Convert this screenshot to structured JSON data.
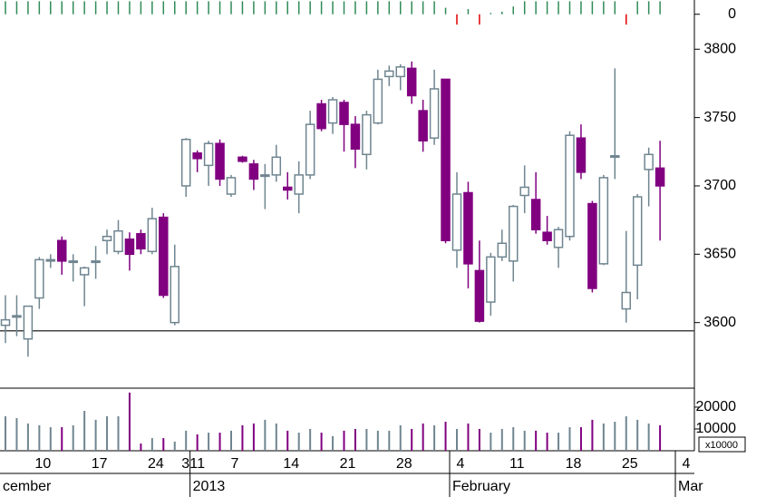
{
  "chart_data": [
    {
      "type": "candlestick",
      "categories": [
        null,
        null,
        null,
        "10",
        null,
        null,
        null,
        null,
        "17",
        null,
        null,
        null,
        null,
        "24",
        null,
        null,
        "31",
        "1",
        null,
        null,
        "7",
        null,
        null,
        null,
        null,
        "14",
        null,
        null,
        null,
        null,
        "21",
        null,
        null,
        null,
        null,
        "28",
        null,
        null,
        null,
        null,
        "4",
        null,
        null,
        null,
        null,
        "11",
        null,
        null,
        null,
        null,
        "18",
        null,
        null,
        null,
        null,
        "25",
        null,
        null,
        null,
        null,
        "4"
      ],
      "period_labels": [
        "cember",
        null,
        null,
        null,
        null,
        null,
        null,
        null,
        null,
        null,
        null,
        null,
        null,
        null,
        null,
        null,
        null,
        "2013",
        null,
        null,
        null,
        null,
        null,
        null,
        null,
        null,
        null,
        null,
        null,
        null,
        null,
        null,
        null,
        null,
        null,
        null,
        null,
        null,
        null,
        null,
        "February",
        null,
        null,
        null,
        null,
        null,
        null,
        null,
        null,
        null,
        null,
        null,
        null,
        null,
        null,
        null,
        null,
        null,
        null,
        null,
        "Mar"
      ],
      "open": [
        3598,
        3604,
        3588,
        3618,
        3645,
        3660,
        3645,
        3635,
        3645,
        3660,
        3652,
        3661,
        3665,
        3652,
        3677,
        3600,
        3700,
        3724,
        3715,
        3731,
        3694,
        3721,
        3716,
        3708,
        3708,
        3699,
        3694,
        3708,
        3760,
        3746,
        3761,
        3745,
        3723,
        3746,
        3780,
        3780,
        3786,
        3755,
        3735,
        3778,
        3653,
        3695,
        3638,
        3615,
        3648,
        3645,
        3693,
        3690,
        3666,
        3655,
        3663,
        3735,
        3687,
        3643,
        3722,
        3610,
        3642,
        3712,
        3713,
        null,
        null
      ],
      "high": [
        3620,
        3620,
        3612,
        3648,
        3650,
        3663,
        3650,
        3641,
        3656,
        3668,
        3675,
        3666,
        3668,
        3684,
        3680,
        3657,
        3735,
        3726,
        3733,
        3734,
        3708,
        3722,
        3719,
        3716,
        3730,
        3710,
        3718,
        3755,
        3763,
        3765,
        3763,
        3751,
        3755,
        3785,
        3788,
        3789,
        3791,
        3763,
        3785,
        3778,
        3710,
        3703,
        3660,
        3651,
        3668,
        3686,
        3715,
        3710,
        3678,
        3670,
        3740,
        3745,
        3689,
        3708,
        3786,
        3667,
        3694,
        3728,
        3733,
        null,
        null
      ],
      "low": [
        3585,
        3590,
        3575,
        3610,
        3640,
        3635,
        3630,
        3612,
        3632,
        3650,
        3650,
        3638,
        3650,
        3650,
        3618,
        3598,
        3692,
        3710,
        3700,
        3700,
        3692,
        3717,
        3697,
        3683,
        3703,
        3690,
        3680,
        3705,
        3740,
        3738,
        3725,
        3713,
        3712,
        3745,
        3773,
        3770,
        3760,
        3725,
        3730,
        3658,
        3640,
        3625,
        3600,
        3605,
        3645,
        3630,
        3680,
        3665,
        3657,
        3640,
        3660,
        3705,
        3622,
        3642,
        3705,
        3600,
        3617,
        3685,
        3660,
        null,
        null
      ],
      "close": [
        3602,
        3605,
        3612,
        3646,
        3646,
        3645,
        3645,
        3640,
        3645,
        3663,
        3667,
        3650,
        3654,
        3676,
        3620,
        3641,
        3734,
        3720,
        3731,
        3705,
        3706,
        3718,
        3705,
        3708,
        3721,
        3697,
        3708,
        3745,
        3742,
        3763,
        3745,
        3727,
        3752,
        3778,
        3784,
        3787,
        3766,
        3733,
        3771,
        3660,
        3694,
        3643,
        3601,
        3648,
        3658,
        3685,
        3699,
        3668,
        3660,
        3668,
        3737,
        3710,
        3625,
        3706,
        3722,
        3622,
        3692,
        3723,
        3700,
        null,
        null
      ],
      "up_color": "#6f8590",
      "down_color": "#800080",
      "hline": 3594,
      "ylim": [
        3552,
        3836
      ],
      "yticks": [
        3600,
        3650,
        3700,
        3750,
        3800
      ]
    },
    {
      "type": "volume",
      "values": [
        15800,
        15000,
        12500,
        11700,
        10800,
        10800,
        11700,
        18300,
        14200,
        15800,
        15800,
        26700,
        3300,
        5800,
        5800,
        4200,
        9200,
        7500,
        8300,
        8300,
        9200,
        11700,
        12500,
        14200,
        12500,
        9200,
        8300,
        10000,
        8300,
        6700,
        9200,
        10000,
        10000,
        9200,
        9200,
        11700,
        10000,
        12500,
        11700,
        13300,
        10000,
        12500,
        10000,
        8300,
        10000,
        10800,
        9200,
        9200,
        8300,
        8300,
        10800,
        10800,
        14200,
        12500,
        13300,
        15800,
        14200,
        12500,
        11700,
        null,
        null
      ],
      "multiplier": "x10000",
      "ylim": [
        0,
        28300
      ],
      "yticks": [
        10000,
        20000
      ]
    },
    {
      "type": "signal",
      "values": [
        1,
        1,
        1,
        1,
        1,
        1,
        1,
        1,
        1,
        1,
        1,
        1,
        1,
        1,
        1,
        1,
        1,
        1,
        1,
        1,
        1,
        1,
        1,
        1,
        1,
        1,
        1,
        1,
        1,
        1,
        1,
        1,
        1,
        1,
        1,
        1,
        1,
        1,
        1,
        0.5,
        -0.8,
        0.4,
        -0.8,
        0.1,
        0.2,
        0.6,
        1,
        1,
        1,
        1,
        1,
        1,
        1,
        1,
        1,
        -0.8,
        1,
        1,
        1,
        null,
        null
      ],
      "up_color": "#2e8b57",
      "down_color": "#e00000",
      "ylim": [
        -1,
        1.1
      ],
      "yticks": [
        0
      ]
    }
  ]
}
